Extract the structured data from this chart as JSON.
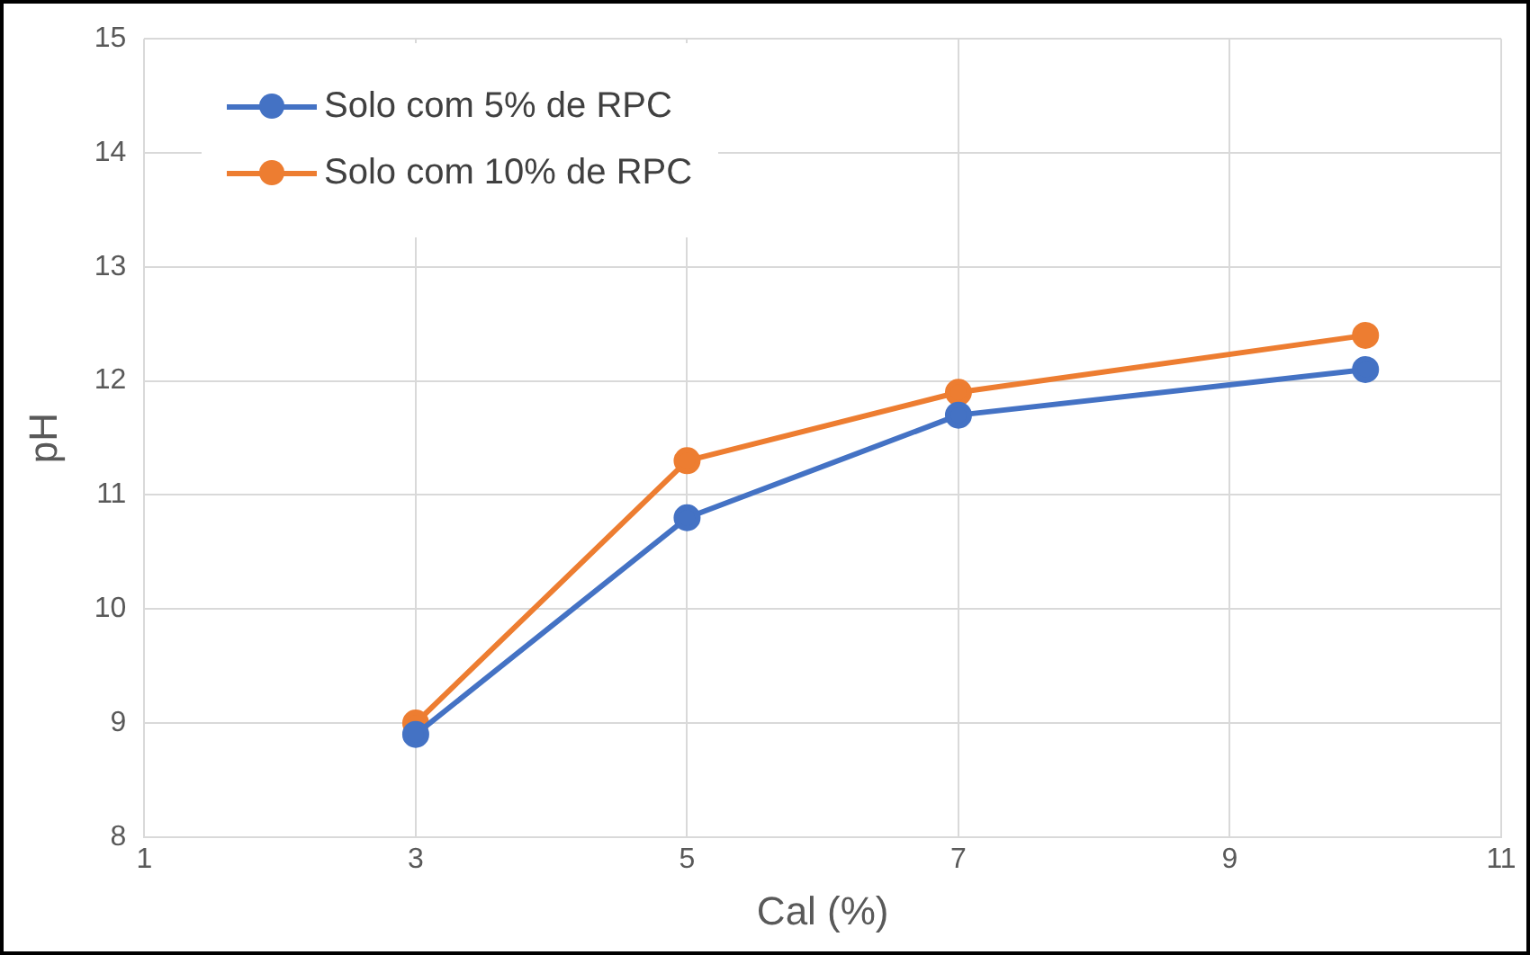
{
  "chart_data": {
    "type": "line",
    "xlabel": "Cal (%)",
    "ylabel": "pH",
    "xlim": [
      1,
      11
    ],
    "xticks": [
      1,
      3,
      5,
      7,
      9,
      11
    ],
    "ylim": [
      8,
      15
    ],
    "yticks": [
      8,
      9,
      10,
      11,
      12,
      13,
      14,
      15
    ],
    "grid": true,
    "legend": "top left",
    "marker": "circle",
    "line_style": "solid",
    "series": [
      {
        "name": "Solo com 5% de RPC",
        "color": "#4472c4",
        "x": [
          3,
          5,
          7,
          10
        ],
        "values": [
          8.9,
          10.8,
          11.7,
          12.1
        ]
      },
      {
        "name": "Solo com 10% de RPC",
        "color": "#ed7d31",
        "x": [
          3,
          5,
          7,
          10
        ],
        "values": [
          9.0,
          11.3,
          11.9,
          12.4
        ]
      }
    ]
  }
}
